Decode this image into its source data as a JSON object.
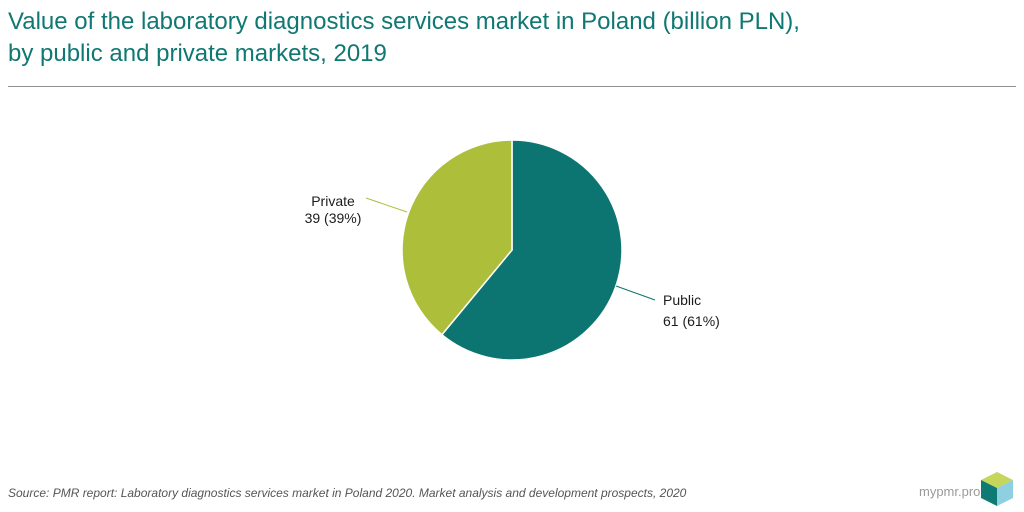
{
  "header": {
    "title_line1": "Value of the laboratory diagnostics services market in Poland (billion PLN),",
    "title_line2": "by public and private markets, 2019"
  },
  "chart_data": {
    "type": "pie",
    "title": "Value of the laboratory diagnostics services market in Poland (billion PLN), by public and private markets, 2019",
    "slices": [
      {
        "label": "Public",
        "value": 61,
        "percent": "61%",
        "value_text": "61 (61%)",
        "color": "#0c7571"
      },
      {
        "label": "Private",
        "value": 39,
        "percent": "39%",
        "value_text": "39 (39%)",
        "color": "#adbf3a"
      }
    ]
  },
  "footer": {
    "source": "Source: PMR report: Laboratory diagnostics services market in Poland 2020. Market analysis and development prospects, 2020",
    "brand": "mypmr.pro"
  },
  "colors": {
    "title": "#107873",
    "public": "#0c7571",
    "private": "#adbf3a",
    "logo_top": "#c6d65a",
    "logo_left": "#0e7a73",
    "logo_right": "#8fd0e0"
  }
}
